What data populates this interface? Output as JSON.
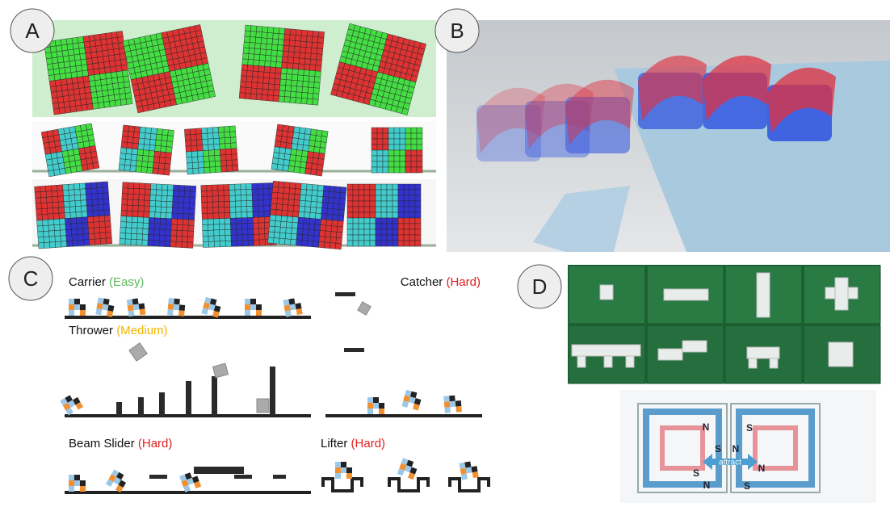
{
  "panels": [
    "A",
    "B",
    "C",
    "D"
  ],
  "tasks": [
    {
      "name": "Carrier",
      "difficulty": "(Easy)"
    },
    {
      "name": "Catcher",
      "difficulty": "(Hard)"
    },
    {
      "name": "Thrower",
      "difficulty": "(Medium)"
    },
    {
      "name": "Beam Slider",
      "difficulty": "(Hard)"
    },
    {
      "name": "Lifter",
      "difficulty": "(Hard)"
    }
  ],
  "magnet_labels": [
    "N",
    "S",
    "S",
    "N",
    "S",
    "N",
    "N",
    "S"
  ],
  "attract": "attract"
}
